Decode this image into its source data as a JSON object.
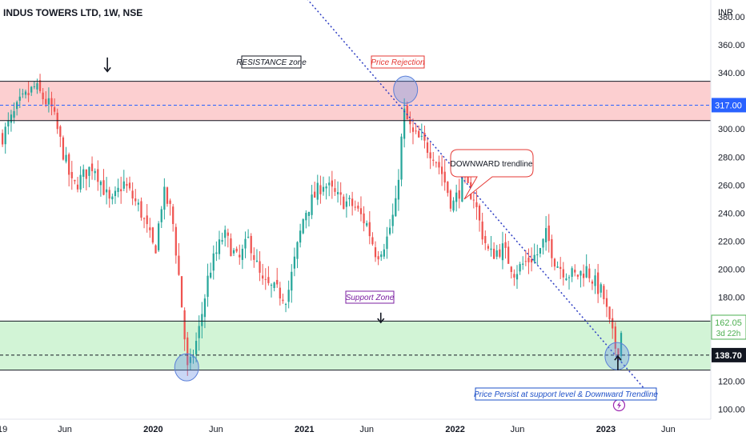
{
  "chart_data": {
    "type": "candlestick",
    "title": "INDUS TOWERS LTD, 1W, NSE",
    "currency": "INR",
    "y_ticks": [
      100,
      120,
      140,
      160,
      180,
      200,
      220,
      240,
      260,
      280,
      300,
      320,
      340,
      360,
      380
    ],
    "ylim": [
      93,
      392
    ],
    "x_ticks": [
      "19",
      "Jun",
      "2020",
      "Jun",
      "2021",
      "Jun",
      "2022",
      "Jun",
      "2023",
      "Jun"
    ],
    "x_tick_dates": [
      "2019-01-01",
      "2019-06-01",
      "2020-01-01",
      "2020-06-01",
      "2021-01-01",
      "2021-06-01",
      "2022-01-01",
      "2022-06-01",
      "2023-01-01",
      "2023-06-01"
    ],
    "xlim": [
      "2018-12-26",
      "2023-09-12"
    ],
    "colors": {
      "up": "#26a69a",
      "down": "#ef5350",
      "resistance_fill": "#fccfd0",
      "support_fill": "#d2f4d6",
      "trendline": "#2f3fc4",
      "price_badge": "#2962ff",
      "current_badge": "#4caf50"
    },
    "zones": {
      "resistance": {
        "low": 306,
        "high": 334
      },
      "support": {
        "low": 128,
        "high": 163
      }
    },
    "levels": {
      "resistance_mid": {
        "value": 317,
        "label": "317.00"
      },
      "support_mid": {
        "value": 138.7,
        "label": "138.70"
      },
      "current": {
        "value": 162.05,
        "label": "162.05",
        "countdown": "3d 22h"
      }
    },
    "trendline": {
      "from": {
        "date": "2021-01-01",
        "value": 395
      },
      "to": {
        "date": "2023-04-24",
        "value": 108
      }
    },
    "anchors": [
      {
        "date": "2019-01-01",
        "close": 295
      },
      {
        "date": "2019-02-12",
        "close": 318
      },
      {
        "date": "2019-03-20",
        "close": 330
      },
      {
        "date": "2019-05-01",
        "close": 314
      },
      {
        "date": "2019-05-20",
        "close": 292
      },
      {
        "date": "2019-06-20",
        "close": 258
      },
      {
        "date": "2019-08-10",
        "close": 275
      },
      {
        "date": "2019-09-20",
        "close": 245
      },
      {
        "date": "2019-10-20",
        "close": 262
      },
      {
        "date": "2019-12-01",
        "close": 242
      },
      {
        "date": "2020-01-05",
        "close": 212
      },
      {
        "date": "2020-01-25",
        "close": 255
      },
      {
        "date": "2020-02-15",
        "close": 240
      },
      {
        "date": "2020-03-05",
        "close": 190
      },
      {
        "date": "2020-03-25",
        "close": 125
      },
      {
        "date": "2020-04-20",
        "close": 155
      },
      {
        "date": "2020-05-15",
        "close": 198
      },
      {
        "date": "2020-06-20",
        "close": 225
      },
      {
        "date": "2020-07-25",
        "close": 205
      },
      {
        "date": "2020-08-20",
        "close": 222
      },
      {
        "date": "2020-09-20",
        "close": 190
      },
      {
        "date": "2020-10-20",
        "close": 185
      },
      {
        "date": "2020-11-20",
        "close": 180
      },
      {
        "date": "2021-01-01",
        "close": 240
      },
      {
        "date": "2021-02-15",
        "close": 262
      },
      {
        "date": "2021-03-25",
        "close": 250
      },
      {
        "date": "2021-05-01",
        "close": 245
      },
      {
        "date": "2021-06-01",
        "close": 232
      },
      {
        "date": "2021-06-25",
        "close": 210
      },
      {
        "date": "2021-07-20",
        "close": 222
      },
      {
        "date": "2021-08-10",
        "close": 245
      },
      {
        "date": "2021-08-30",
        "close": 312
      },
      {
        "date": "2021-09-20",
        "close": 296
      },
      {
        "date": "2021-10-15",
        "close": 290
      },
      {
        "date": "2021-11-10",
        "close": 282
      },
      {
        "date": "2021-12-01",
        "close": 268
      },
      {
        "date": "2021-12-25",
        "close": 245
      },
      {
        "date": "2022-01-20",
        "close": 262
      },
      {
        "date": "2022-02-15",
        "close": 252
      },
      {
        "date": "2022-03-05",
        "close": 228
      },
      {
        "date": "2022-03-25",
        "close": 210
      },
      {
        "date": "2022-04-25",
        "close": 215
      },
      {
        "date": "2022-05-25",
        "close": 198
      },
      {
        "date": "2022-06-20",
        "close": 205
      },
      {
        "date": "2022-07-25",
        "close": 212
      },
      {
        "date": "2022-08-10",
        "close": 225
      },
      {
        "date": "2022-09-01",
        "close": 205
      },
      {
        "date": "2022-09-25",
        "close": 198
      },
      {
        "date": "2022-10-20",
        "close": 195
      },
      {
        "date": "2022-11-15",
        "close": 200
      },
      {
        "date": "2022-12-10",
        "close": 188
      },
      {
        "date": "2022-12-25",
        "close": 182
      },
      {
        "date": "2023-01-10",
        "close": 160
      },
      {
        "date": "2023-01-28",
        "close": 140
      },
      {
        "date": "2023-02-12",
        "close": 162
      }
    ],
    "annotations": {
      "resistance": "RESISTANCE zone",
      "rejection": "Price Rejection",
      "downtrend": "DOWNWARD trendline",
      "support": "Support Zone",
      "persist": "Price Persist at support level & Downward Trendline"
    },
    "circles": [
      {
        "date": "2020-03-22",
        "value": 130
      },
      {
        "date": "2021-09-03",
        "value": 328
      },
      {
        "date": "2023-01-28",
        "value": 138
      }
    ],
    "arrows": [
      {
        "date": "2019-09-12",
        "from": 351,
        "to": 341,
        "direction": "down"
      },
      {
        "date": "2021-07-05",
        "from": 169,
        "to": 162,
        "direction": "down"
      },
      {
        "date": "2023-01-30",
        "from": 128,
        "to": 138,
        "direction": "up"
      }
    ],
    "lightning": {
      "date": "2023-02-02",
      "value": 103,
      "icon": "lightning-icon",
      "color": "#9c27b0"
    }
  }
}
